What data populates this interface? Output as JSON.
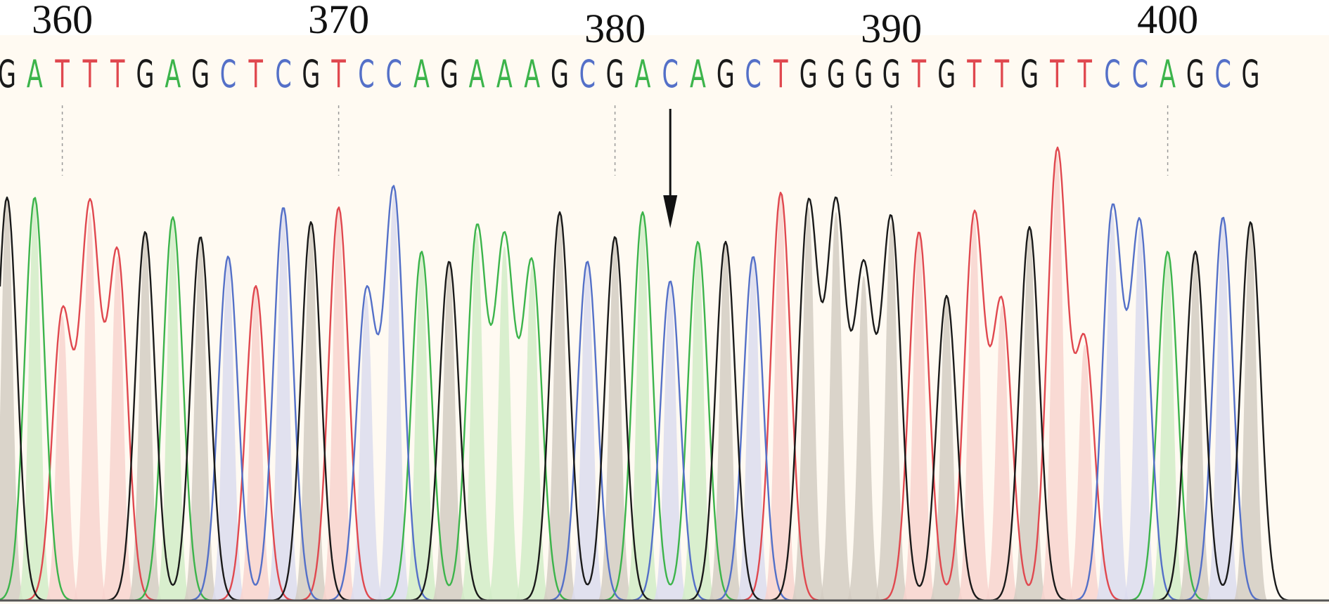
{
  "chart_data": {
    "type": "line",
    "title": "",
    "xlabel": "",
    "ylabel": "",
    "position_labels": [
      {
        "position": 360,
        "label": "360"
      },
      {
        "position": 370,
        "label": "370"
      },
      {
        "position": 380,
        "label": "380"
      },
      {
        "position": 390,
        "label": "390"
      },
      {
        "position": 400,
        "label": "400"
      }
    ],
    "sequence": [
      "G",
      "A",
      "T",
      "T",
      "T",
      "G",
      "A",
      "G",
      "C",
      "T",
      "C",
      "G",
      "T",
      "C",
      "C",
      "A",
      "G",
      "A",
      "A",
      "A",
      "G",
      "C",
      "G",
      "A",
      "C",
      "A",
      "G",
      "C",
      "T",
      "G",
      "G",
      "G",
      "G",
      "T",
      "G",
      "T",
      "T",
      "G",
      "T",
      "T",
      "C",
      "C",
      "A",
      "G",
      "C",
      "G"
    ],
    "first_position": 358,
    "trace_colors": {
      "G": "#1a1a1a",
      "A": "#3cb44b",
      "T": "#e0484f",
      "C": "#5470c8"
    },
    "fill_colors": {
      "G": "#d4cdc3",
      "A": "#d2ecc8",
      "T": "#f8d4cf",
      "C": "#dcdcee"
    },
    "peak_heights": [
      0.82,
      0.82,
      0.58,
      0.79,
      0.7,
      0.75,
      0.78,
      0.74,
      0.7,
      0.64,
      0.8,
      0.77,
      0.8,
      0.62,
      0.83,
      0.71,
      0.69,
      0.75,
      0.72,
      0.68,
      0.79,
      0.69,
      0.74,
      0.79,
      0.65,
      0.73,
      0.73,
      0.7,
      0.83,
      0.8,
      0.79,
      0.66,
      0.77,
      0.75,
      0.62,
      0.78,
      0.6,
      0.76,
      0.91,
      0.52,
      0.79,
      0.76,
      0.71,
      0.71,
      0.78,
      0.77
    ],
    "highlighted_base_position": 382,
    "arrow": "down",
    "background": "#fffaf2",
    "grid": false,
    "legend": "none"
  }
}
